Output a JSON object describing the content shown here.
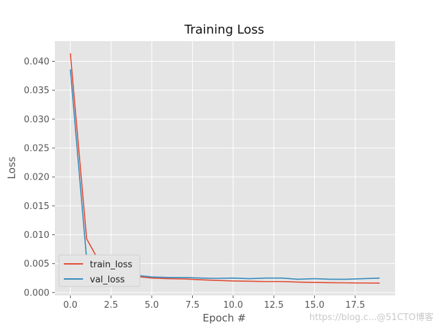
{
  "chart_data": {
    "type": "line",
    "title": "Training Loss",
    "xlabel": "Epoch #",
    "ylabel": "Loss",
    "xlim": [
      -0.95,
      19.95
    ],
    "ylim": [
      -0.0005,
      0.0435
    ],
    "xticks": [
      0.0,
      2.5,
      5.0,
      7.5,
      10.0,
      12.5,
      15.0,
      17.5
    ],
    "xtick_labels": [
      "0.0",
      "2.5",
      "5.0",
      "7.5",
      "10.0",
      "12.5",
      "15.0",
      "17.5"
    ],
    "yticks": [
      0.0,
      0.005,
      0.01,
      0.015,
      0.02,
      0.025,
      0.03,
      0.035,
      0.04
    ],
    "ytick_labels": [
      "0.000",
      "0.005",
      "0.010",
      "0.015",
      "0.020",
      "0.025",
      "0.030",
      "0.035",
      "0.040"
    ],
    "grid": true,
    "legend_position": "lower-left",
    "x": [
      0,
      1,
      2,
      3,
      4,
      5,
      6,
      7,
      8,
      9,
      10,
      11,
      12,
      13,
      14,
      15,
      16,
      17,
      18,
      19
    ],
    "series": [
      {
        "name": "train_loss",
        "color": "#E24A33",
        "values": [
          0.0414,
          0.0093,
          0.0042,
          0.0033,
          0.0028,
          0.0025,
          0.0024,
          0.00235,
          0.0022,
          0.0021,
          0.002,
          0.00195,
          0.0019,
          0.0019,
          0.0018,
          0.00175,
          0.0017,
          0.00168,
          0.00165,
          0.00163
        ]
      },
      {
        "name": "val_loss",
        "color": "#348ABD",
        "values": [
          0.0386,
          0.0058,
          0.0034,
          0.0032,
          0.003,
          0.0027,
          0.0026,
          0.0026,
          0.0025,
          0.00245,
          0.0025,
          0.0024,
          0.0025,
          0.0025,
          0.0023,
          0.0024,
          0.0023,
          0.0023,
          0.0024,
          0.0025
        ]
      }
    ],
    "style": {
      "plot_background": "#E5E5E5",
      "grid_color": "#FFFFFF"
    }
  },
  "watermark": "https://blog.c...@51CTO博客"
}
